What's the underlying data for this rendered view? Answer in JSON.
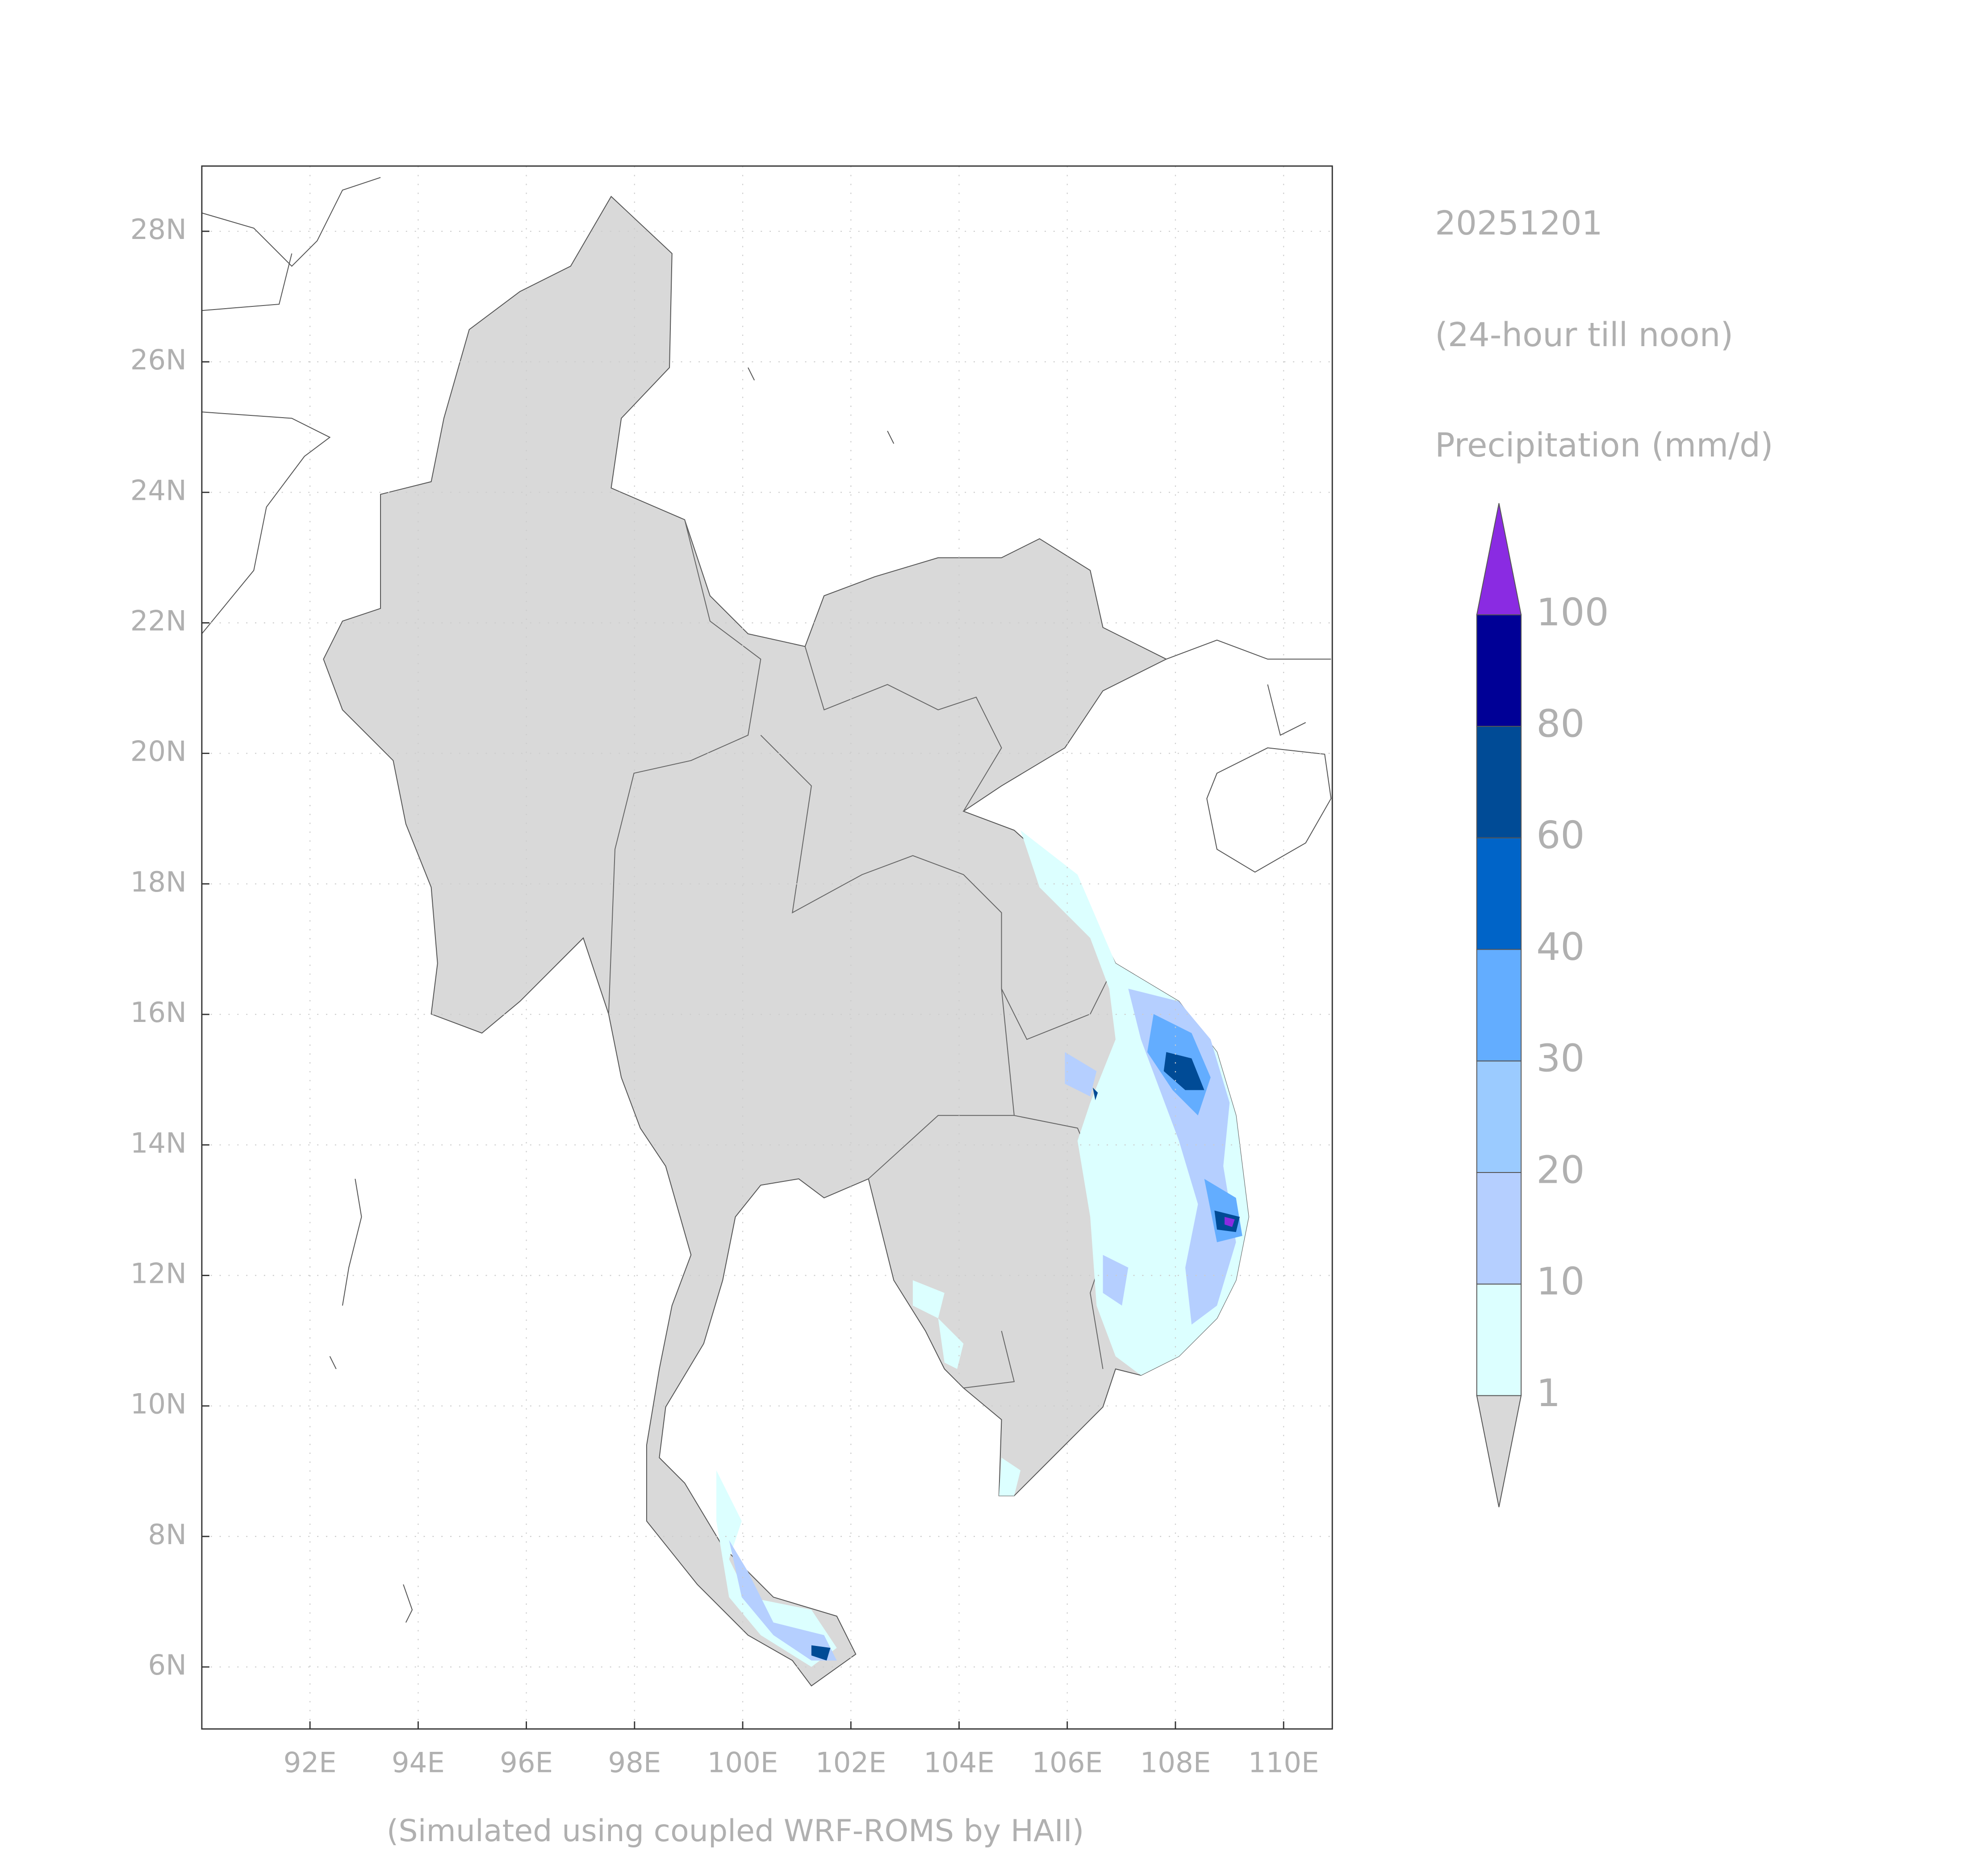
{
  "labels": {
    "date": "20251201",
    "period": "(24-hour till noon)",
    "variable": "Precipitation (mm/d)",
    "credit": "(Simulated using coupled WRF-ROMS by HAII)"
  },
  "map": {
    "xlim": [
      90,
      110.9
    ],
    "ylim": [
      5.05,
      29
    ],
    "xticks": [
      {
        "value": 92,
        "label": "92E"
      },
      {
        "value": 94,
        "label": "94E"
      },
      {
        "value": 96,
        "label": "96E"
      },
      {
        "value": 98,
        "label": "98E"
      },
      {
        "value": 100,
        "label": "100E"
      },
      {
        "value": 102,
        "label": "102E"
      },
      {
        "value": 104,
        "label": "104E"
      },
      {
        "value": 106,
        "label": "106E"
      },
      {
        "value": 108,
        "label": "108E"
      },
      {
        "value": 110,
        "label": "110E"
      }
    ],
    "yticks": [
      {
        "value": 6,
        "label": "6N"
      },
      {
        "value": 8,
        "label": "8N"
      },
      {
        "value": 10,
        "label": "10N"
      },
      {
        "value": 12,
        "label": "12N"
      },
      {
        "value": 14,
        "label": "14N"
      },
      {
        "value": 16,
        "label": "16N"
      },
      {
        "value": 18,
        "label": "18N"
      },
      {
        "value": 20,
        "label": "20N"
      },
      {
        "value": 22,
        "label": "22N"
      },
      {
        "value": 24,
        "label": "24N"
      },
      {
        "value": 26,
        "label": "26N"
      },
      {
        "value": 28,
        "label": "28N"
      }
    ],
    "grid": true
  },
  "colorbar": {
    "levels": [
      1,
      10,
      20,
      30,
      40,
      60,
      80,
      100
    ],
    "colors": [
      "#d9d9d9",
      "#dcffff",
      "#b5cfff",
      "#9bcbff",
      "#63adff",
      "#0064c8",
      "#004b96",
      "#000096",
      "#8a2be2"
    ]
  }
}
